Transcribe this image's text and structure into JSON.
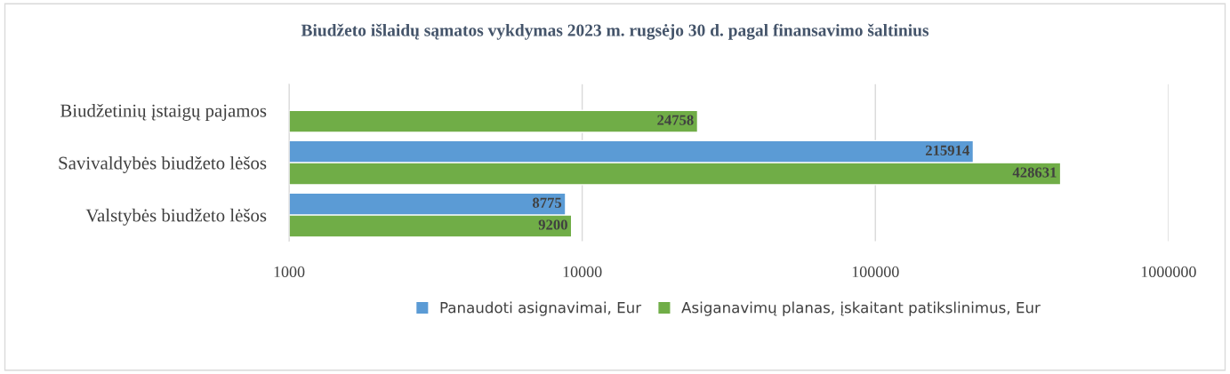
{
  "chart_data": {
    "type": "bar",
    "orientation": "horizontal",
    "title": "Biudžeto išlaidų sąmatos vykdymas 2023 m. rugsėjo 30 d. pagal finansavimo šaltinius",
    "categories": [
      "Biudžetinių įstaigų pajamos",
      "Savivaldybės biudžeto lėšos",
      "Valstybės biudžeto lėšos"
    ],
    "series": [
      {
        "name": "Panaudoti asignavimai, Eur",
        "color": "#5b9bd5",
        "values": [
          null,
          215914,
          8775
        ]
      },
      {
        "name": "Asiganavimų planas, įskaitant patikslinimus, Eur",
        "color": "#70ad47",
        "values": [
          24758,
          428631,
          9200
        ]
      }
    ],
    "log": "x",
    "xlim": [
      1000,
      1000000
    ],
    "xticks": [
      1000,
      10000,
      100000,
      1000000
    ],
    "grid": "x",
    "legend": "bottom",
    "data_labels": true
  }
}
